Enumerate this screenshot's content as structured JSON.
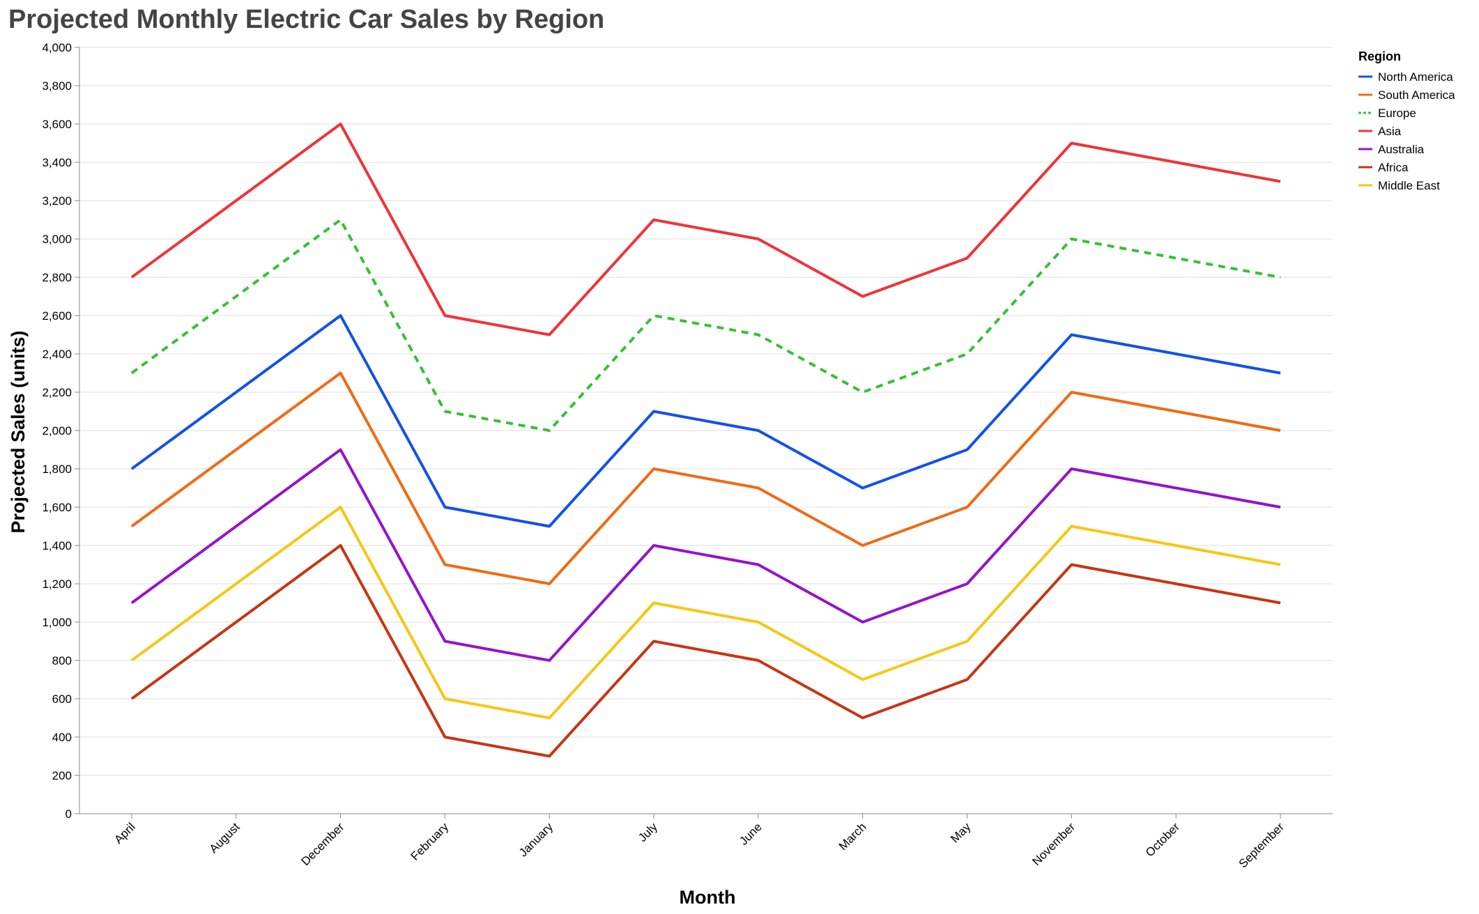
{
  "chart_data": {
    "type": "line",
    "title": "Projected Monthly Electric Car Sales by Region",
    "xlabel": "Month",
    "ylabel": "Projected Sales (units)",
    "categories": [
      "April",
      "August",
      "December",
      "February",
      "January",
      "July",
      "June",
      "March",
      "May",
      "November",
      "October",
      "September"
    ],
    "ylim": [
      0,
      4000
    ],
    "yticks": [
      0,
      200,
      400,
      600,
      800,
      1000,
      1200,
      1400,
      1600,
      1800,
      2000,
      2200,
      2400,
      2600,
      2800,
      3000,
      3200,
      3400,
      3600,
      3800,
      4000
    ],
    "ytick_labels": [
      "0",
      "200",
      "400",
      "600",
      "800",
      "1,000",
      "1,200",
      "1,400",
      "1,600",
      "1,800",
      "2,000",
      "2,200",
      "2,400",
      "2,600",
      "2,800",
      "3,000",
      "3,200",
      "3,400",
      "3,600",
      "3,800",
      "4,000"
    ],
    "grid": true,
    "legend": {
      "title": "Region",
      "placement": "top-right"
    },
    "series": [
      {
        "name": "North America",
        "color": "#1152e8",
        "dashed": false,
        "values": [
          1800,
          2200,
          2600,
          1600,
          1500,
          2100,
          2000,
          1700,
          1900,
          2500,
          2400,
          2300
        ]
      },
      {
        "name": "South America",
        "color": "#f06a14",
        "dashed": false,
        "values": [
          1500,
          1900,
          2300,
          1300,
          1200,
          1800,
          1700,
          1400,
          1600,
          2200,
          2100,
          2000
        ]
      },
      {
        "name": "Europe",
        "color": "#33c233",
        "dashed": true,
        "values": [
          2300,
          2700,
          3100,
          2100,
          2000,
          2600,
          2500,
          2200,
          2400,
          3000,
          2900,
          2800
        ]
      },
      {
        "name": "Asia",
        "color": "#ee3338",
        "dashed": false,
        "values": [
          2800,
          3200,
          3600,
          2600,
          2500,
          3100,
          3000,
          2700,
          2900,
          3500,
          3400,
          3300
        ]
      },
      {
        "name": "Australia",
        "color": "#9414c8",
        "dashed": false,
        "values": [
          1100,
          1500,
          1900,
          900,
          800,
          1400,
          1300,
          1000,
          1200,
          1800,
          1700,
          1600
        ]
      },
      {
        "name": "Africa",
        "color": "#c63612",
        "dashed": false,
        "values": [
          600,
          1000,
          1400,
          400,
          300,
          900,
          800,
          500,
          700,
          1300,
          1200,
          1100
        ]
      },
      {
        "name": "Middle East",
        "color": "#f6c712",
        "dashed": false,
        "values": [
          800,
          1200,
          1600,
          600,
          500,
          1100,
          1000,
          700,
          900,
          1500,
          1400,
          1300
        ]
      }
    ]
  }
}
